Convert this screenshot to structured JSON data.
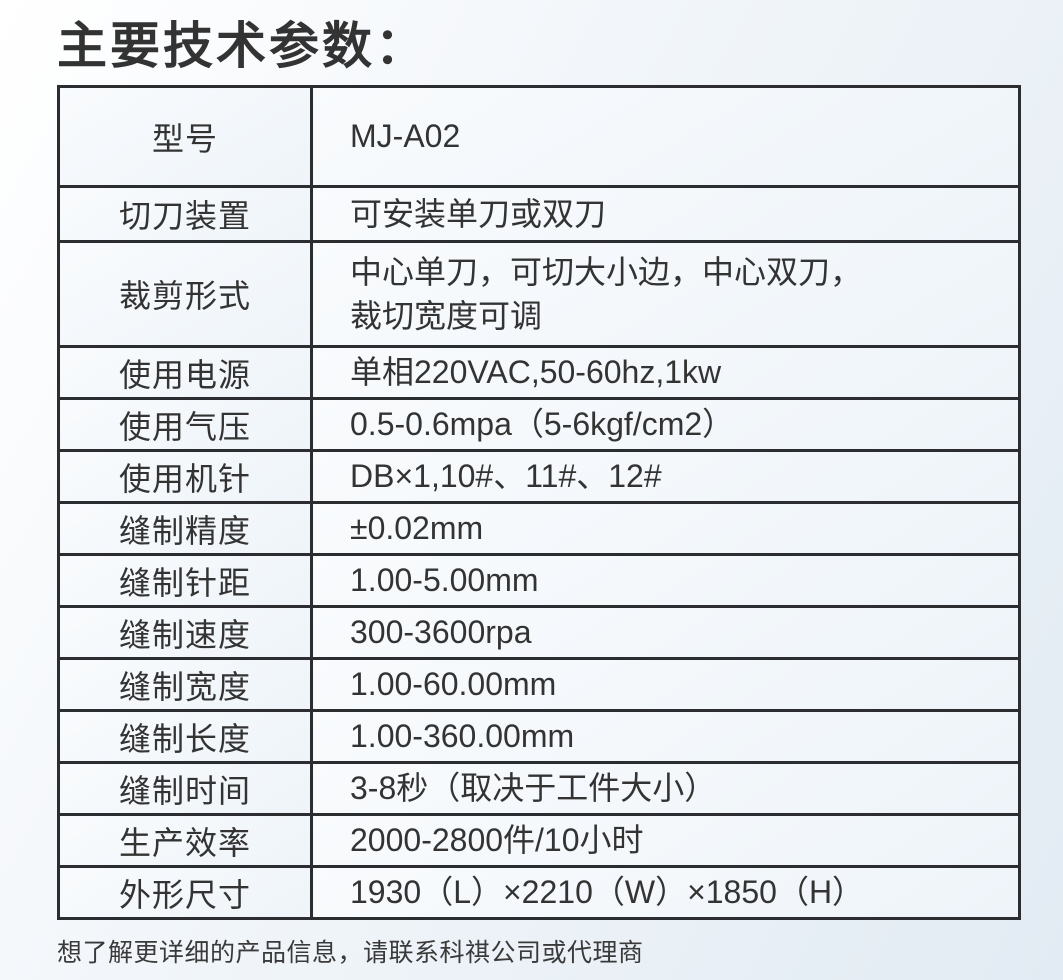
{
  "page": {
    "title": "主要技术参数：",
    "footer_note": "想了解更详细的产品信息，请联系科祺公司或代理商"
  },
  "colors": {
    "border": "#2b2d31",
    "text": "#333333",
    "cell_background_top": "#f9fbfd",
    "cell_background_bottom": "#eef4f9",
    "page_background": "#e2ebf3"
  },
  "table": {
    "rows": [
      {
        "label": "型号",
        "value": "MJ-A02"
      },
      {
        "label": "切刀装置",
        "value": "可安装单刀或双刀"
      },
      {
        "label": "裁剪形式",
        "value": "中心单刀，可切大小边，中心双刀，\n裁切宽度可调"
      },
      {
        "label": "使用电源",
        "value": "单相220VAC,50-60hz,1kw"
      },
      {
        "label": "使用气压",
        "value": "0.5-0.6mpa（5-6kgf/cm2）"
      },
      {
        "label": "使用机针",
        "value": "DB×1,10#、11#、12#"
      },
      {
        "label": "缝制精度",
        "value": "±0.02mm"
      },
      {
        "label": "缝制针距",
        "value": "1.00-5.00mm"
      },
      {
        "label": "缝制速度",
        "value": "300-3600rpa"
      },
      {
        "label": "缝制宽度",
        "value": "1.00-60.00mm"
      },
      {
        "label": "缝制长度",
        "value": "1.00-360.00mm"
      },
      {
        "label": "缝制时间",
        "value": "3-8秒（取决于工件大小）"
      },
      {
        "label": "生产效率",
        "value": "2000-2800件/10小时"
      },
      {
        "label": "外形尺寸",
        "value": "1930（L）×2210（W）×1850（H）"
      }
    ]
  }
}
